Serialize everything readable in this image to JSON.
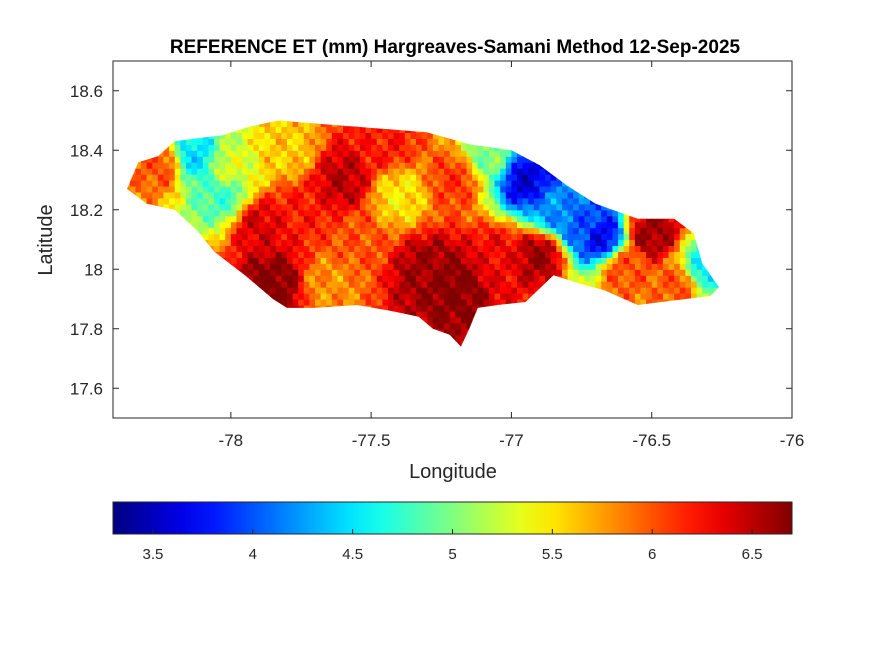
{
  "chart_data": {
    "type": "heatmap",
    "title": "REFERENCE ET (mm) Hargreaves-Samani Method  12-Sep-2025",
    "xlabel": "Longitude",
    "ylabel": "Latitude",
    "xlim": [
      -78.42,
      -76
    ],
    "ylim": [
      17.5,
      18.7
    ],
    "xticks": [
      -78,
      -77.5,
      -77,
      -76.5,
      -76
    ],
    "xtick_labels": [
      "-78",
      "-77.5",
      "-77",
      "-76.5",
      "-76"
    ],
    "yticks": [
      17.6,
      17.8,
      18,
      18.2,
      18.4,
      18.6
    ],
    "ytick_labels": [
      "17.6",
      "17.8",
      "18",
      "18.2",
      "18.4",
      "18.6"
    ],
    "colormap": "jet",
    "clim": [
      3.3,
      6.7
    ],
    "colorbar_ticks": [
      3.5,
      4,
      4.5,
      5,
      5.5,
      6,
      6.5
    ],
    "colorbar_tick_labels": [
      "3.5",
      "4",
      "4.5",
      "5",
      "5.5",
      "6",
      "6.5"
    ],
    "colorbar_location": "southoutside",
    "grid": false,
    "region_outline": [
      [
        -78.37,
        18.27
      ],
      [
        -78.33,
        18.36
      ],
      [
        -78.26,
        18.38
      ],
      [
        -78.2,
        18.43
      ],
      [
        -78.12,
        18.44
      ],
      [
        -78.03,
        18.45
      ],
      [
        -77.93,
        18.48
      ],
      [
        -77.83,
        18.5
      ],
      [
        -77.7,
        18.49
      ],
      [
        -77.57,
        18.48
      ],
      [
        -77.43,
        18.47
      ],
      [
        -77.3,
        18.46
      ],
      [
        -77.15,
        18.42
      ],
      [
        -77.0,
        18.4
      ],
      [
        -76.9,
        18.35
      ],
      [
        -76.8,
        18.28
      ],
      [
        -76.7,
        18.22
      ],
      [
        -76.55,
        18.17
      ],
      [
        -76.42,
        18.17
      ],
      [
        -76.35,
        18.12
      ],
      [
        -76.32,
        18.02
      ],
      [
        -76.26,
        17.94
      ],
      [
        -76.29,
        17.91
      ],
      [
        -76.38,
        17.9
      ],
      [
        -76.55,
        17.88
      ],
      [
        -76.67,
        17.93
      ],
      [
        -76.75,
        17.95
      ],
      [
        -76.85,
        17.98
      ],
      [
        -76.95,
        17.89
      ],
      [
        -77.05,
        17.88
      ],
      [
        -77.12,
        17.87
      ],
      [
        -77.15,
        17.8
      ],
      [
        -77.18,
        17.74
      ],
      [
        -77.22,
        17.78
      ],
      [
        -77.28,
        17.8
      ],
      [
        -77.33,
        17.84
      ],
      [
        -77.43,
        17.86
      ],
      [
        -77.55,
        17.88
      ],
      [
        -77.7,
        17.87
      ],
      [
        -77.8,
        17.87
      ],
      [
        -77.85,
        17.9
      ],
      [
        -77.95,
        17.98
      ],
      [
        -78.06,
        18.06
      ],
      [
        -78.12,
        18.13
      ],
      [
        -78.2,
        18.2
      ],
      [
        -78.3,
        18.22
      ]
    ],
    "field_hotspots": [
      {
        "lon": -78.25,
        "lat": 18.35,
        "value": 6.0
      },
      {
        "lon": -78.13,
        "lat": 18.38,
        "value": 4.5
      },
      {
        "lon": -78.03,
        "lat": 18.25,
        "value": 4.8
      },
      {
        "lon": -78.0,
        "lat": 18.34,
        "value": 5.3
      },
      {
        "lon": -77.9,
        "lat": 18.15,
        "value": 6.4
      },
      {
        "lon": -77.8,
        "lat": 18.4,
        "value": 5.6
      },
      {
        "lon": -77.75,
        "lat": 18.2,
        "value": 6.2
      },
      {
        "lon": -77.6,
        "lat": 18.3,
        "value": 6.5
      },
      {
        "lon": -77.55,
        "lat": 18.1,
        "value": 6.0
      },
      {
        "lon": -77.45,
        "lat": 18.42,
        "value": 6.2
      },
      {
        "lon": -77.4,
        "lat": 18.25,
        "value": 5.5
      },
      {
        "lon": -77.3,
        "lat": 18.0,
        "value": 6.6
      },
      {
        "lon": -77.2,
        "lat": 18.3,
        "value": 6.1
      },
      {
        "lon": -77.2,
        "lat": 17.95,
        "value": 6.7
      },
      {
        "lon": -77.08,
        "lat": 18.38,
        "value": 5.0
      },
      {
        "lon": -77.05,
        "lat": 18.05,
        "value": 6.3
      },
      {
        "lon": -76.95,
        "lat": 18.3,
        "value": 3.6
      },
      {
        "lon": -76.9,
        "lat": 18.05,
        "value": 6.6
      },
      {
        "lon": -76.85,
        "lat": 18.2,
        "value": 4.2
      },
      {
        "lon": -76.75,
        "lat": 18.15,
        "value": 4.0
      },
      {
        "lon": -76.68,
        "lat": 18.11,
        "value": 3.7
      },
      {
        "lon": -76.6,
        "lat": 18.0,
        "value": 6.0
      },
      {
        "lon": -76.5,
        "lat": 18.12,
        "value": 6.6
      },
      {
        "lon": -76.4,
        "lat": 17.95,
        "value": 6.0
      },
      {
        "lon": -76.32,
        "lat": 18.0,
        "value": 4.6
      },
      {
        "lon": -77.85,
        "lat": 17.95,
        "value": 6.7
      },
      {
        "lon": -77.65,
        "lat": 17.95,
        "value": 5.8
      }
    ]
  }
}
